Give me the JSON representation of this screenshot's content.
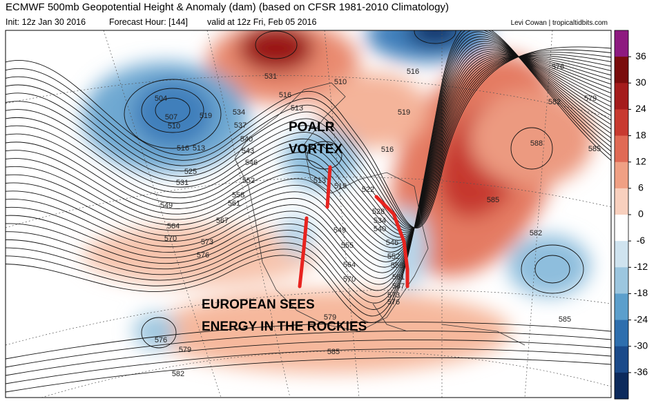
{
  "header": {
    "title": "ECMWF 500mb Geopotential Height & Anomaly (dam) (based on CFSR 1981-2010 Climatology)",
    "init": "Init: 12z Jan 30 2016",
    "forecast_hour": "Forecast Hour: [144]",
    "valid": "valid at 12z Fri, Feb 05 2016",
    "credit": "Levi Cowan | tropicaltidbits.com"
  },
  "annotations": [
    "POALR",
    "VORTEX",
    "EUROPEAN SEES",
    "ENERGY IN THE ROCKIES"
  ],
  "colorbar": {
    "ticks": [
      36,
      30,
      24,
      18,
      12,
      6,
      0,
      -6,
      -12,
      -18,
      -24,
      -30,
      -36
    ],
    "colors": [
      "#8e1a80",
      "#7a0c0c",
      "#a51c1c",
      "#c83a30",
      "#e06a55",
      "#f0a084",
      "#f8d0be",
      "#ffffff",
      "#cfe3ef",
      "#9cc6df",
      "#5c9fcc",
      "#2e6fae",
      "#1a4a8a",
      "#0c2a5c"
    ]
  },
  "contour_labels": [
    "531",
    "516",
    "576",
    "579",
    "582",
    "510",
    "516",
    "513",
    "519",
    "504",
    "507",
    "510",
    "516",
    "513",
    "519",
    "534",
    "537",
    "540",
    "543",
    "546",
    "525",
    "531",
    "552",
    "561",
    "558",
    "549",
    "564",
    "567",
    "570",
    "573",
    "576",
    "513",
    "519",
    "522",
    "516",
    "588",
    "585",
    "585",
    "582",
    "528",
    "534",
    "540",
    "549",
    "555",
    "546",
    "552",
    "564",
    "570",
    "558",
    "561",
    "567",
    "573",
    "576",
    "576",
    "579",
    "582",
    "585",
    "579",
    "585"
  ]
}
